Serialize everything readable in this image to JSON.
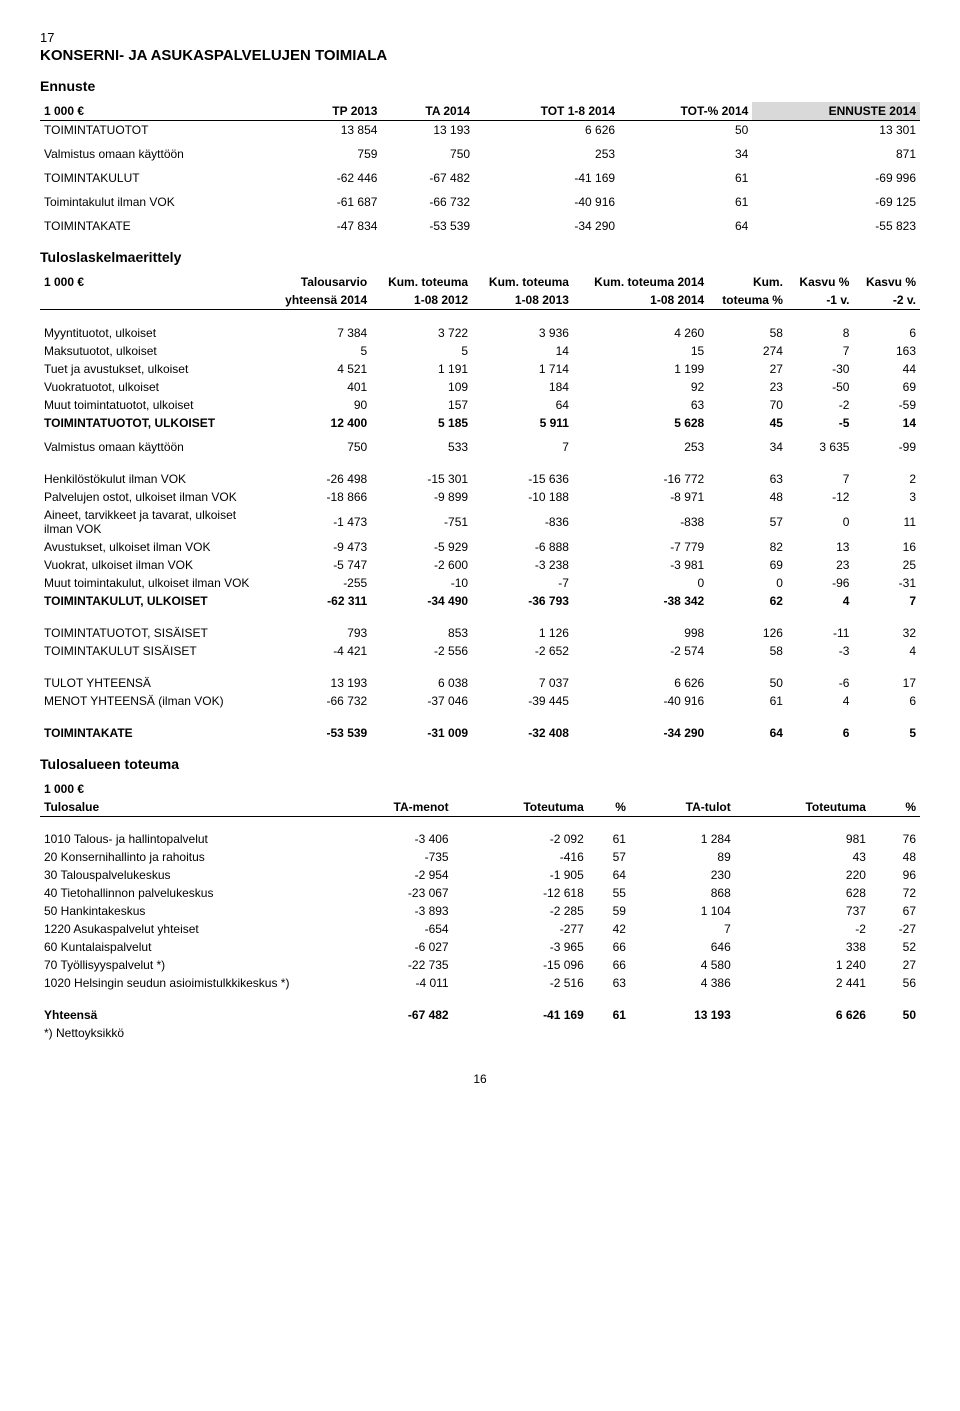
{
  "page_number_top": "17",
  "main_title": "KONSERNI- JA ASUKASPALVELUJEN TOIMIALA",
  "ennuste_title": "Ennuste",
  "t1": {
    "header": [
      "1 000 €",
      "TP 2013",
      "TA 2014",
      "TOT 1-8 2014",
      "TOT-% 2014",
      "ENNUSTE 2014"
    ],
    "rows": [
      [
        "TOIMINTATUOTOT",
        "13 854",
        "13 193",
        "6 626",
        "50",
        "13 301"
      ],
      [
        "Valmistus omaan käyttöön",
        "759",
        "750",
        "253",
        "34",
        "871"
      ],
      [
        "TOIMINTAKULUT",
        "-62 446",
        "-67 482",
        "-41 169",
        "61",
        "-69 996"
      ],
      [
        "Toimintakulut ilman VOK",
        "-61 687",
        "-66 732",
        "-40 916",
        "61",
        "-69 125"
      ],
      [
        "TOIMINTAKATE",
        "-47 834",
        "-53 539",
        "-34 290",
        "64",
        "-55 823"
      ]
    ]
  },
  "tulos_title": "Tuloslaskelmaerittely",
  "t2": {
    "header_top": [
      "1 000 €",
      "Talousarvio",
      "Kum. toteuma",
      "Kum. toteuma",
      "Kum. toteuma 2014",
      "Kum.",
      "Kasvu %",
      "Kasvu %"
    ],
    "header_bot": [
      "",
      "yhteensä 2014",
      "1-08 2012",
      "1-08 2013",
      "1-08 2014",
      "toteuma %",
      "-1 v.",
      "-2 v."
    ],
    "rows": [
      [
        "Myyntituotot, ulkoiset",
        "7 384",
        "3 722",
        "3 936",
        "4 260",
        "58",
        "8",
        "6"
      ],
      [
        "Maksutuotot, ulkoiset",
        "5",
        "5",
        "14",
        "15",
        "274",
        "7",
        "163"
      ],
      [
        "Tuet ja avustukset, ulkoiset",
        "4 521",
        "1 191",
        "1 714",
        "1 199",
        "27",
        "-30",
        "44"
      ],
      [
        "Vuokratuotot, ulkoiset",
        "401",
        "109",
        "184",
        "92",
        "23",
        "-50",
        "69"
      ],
      [
        "Muut toimintatuotot, ulkoiset",
        "90",
        "157",
        "64",
        "63",
        "70",
        "-2",
        "-59"
      ]
    ],
    "sum1": [
      "TOIMINTATUOTOT, ULKOISET",
      "12 400",
      "5 185",
      "5 911",
      "5 628",
      "45",
      "-5",
      "14"
    ],
    "valm": [
      "Valmistus omaan käyttöön",
      "750",
      "533",
      "7",
      "253",
      "34",
      "3 635",
      "-99"
    ],
    "rows2": [
      [
        "Henkilöstökulut ilman VOK",
        "-26 498",
        "-15 301",
        "-15 636",
        "-16 772",
        "63",
        "7",
        "2"
      ],
      [
        "Palvelujen ostot, ulkoiset ilman VOK",
        "-18 866",
        "-9 899",
        "-10 188",
        "-8 971",
        "48",
        "-12",
        "3"
      ],
      [
        "Aineet, tarvikkeet ja tavarat, ulkoiset ilman VOK",
        "-1 473",
        "-751",
        "-836",
        "-838",
        "57",
        "0",
        "11"
      ],
      [
        "Avustukset, ulkoiset ilman VOK",
        "-9 473",
        "-5 929",
        "-6 888",
        "-7 779",
        "82",
        "13",
        "16"
      ],
      [
        "Vuokrat, ulkoiset ilman VOK",
        "-5 747",
        "-2 600",
        "-3 238",
        "-3 981",
        "69",
        "23",
        "25"
      ],
      [
        "Muut toimintakulut, ulkoiset ilman VOK",
        "-255",
        "-10",
        "-7",
        "0",
        "0",
        "-96",
        "-31"
      ]
    ],
    "sum2": [
      "TOIMINTAKULUT, ULKOISET",
      "-62 311",
      "-34 490",
      "-36 793",
      "-38 342",
      "62",
      "4",
      "7"
    ],
    "rows3": [
      [
        "TOIMINTATUOTOT, SISÄISET",
        "793",
        "853",
        "1 126",
        "998",
        "126",
        "-11",
        "32"
      ],
      [
        "TOIMINTAKULUT SISÄISET",
        "-4 421",
        "-2 556",
        "-2 652",
        "-2 574",
        "58",
        "-3",
        "4"
      ]
    ],
    "rows4": [
      [
        "TULOT YHTEENSÄ",
        "13 193",
        "6 038",
        "7 037",
        "6 626",
        "50",
        "-6",
        "17"
      ],
      [
        "MENOT YHTEENSÄ (ilman VOK)",
        "-66 732",
        "-37 046",
        "-39 445",
        "-40 916",
        "61",
        "4",
        "6"
      ]
    ],
    "kate": [
      "TOIMINTAKATE",
      "-53 539",
      "-31 009",
      "-32 408",
      "-34 290",
      "64",
      "6",
      "5"
    ]
  },
  "tulosalue_title": "Tulosalueen toteuma",
  "t3": {
    "header_top": "1 000 €",
    "header": [
      "Tulosalue",
      "TA-menot",
      "Toteutuma",
      "%",
      "TA-tulot",
      "Toteutuma",
      "%"
    ],
    "rows": [
      [
        "1010 Talous- ja hallintopalvelut",
        "-3 406",
        "-2 092",
        "61",
        "1 284",
        "981",
        "76"
      ],
      [
        "20 Konsernihallinto ja rahoitus",
        "-735",
        "-416",
        "57",
        "89",
        "43",
        "48"
      ],
      [
        "30 Talouspalvelukeskus",
        "-2 954",
        "-1 905",
        "64",
        "230",
        "220",
        "96"
      ],
      [
        "40 Tietohallinnon palvelukeskus",
        "-23 067",
        "-12 618",
        "55",
        "868",
        "628",
        "72"
      ],
      [
        "50 Hankintakeskus",
        "-3 893",
        "-2 285",
        "59",
        "1 104",
        "737",
        "67"
      ],
      [
        "1220 Asukaspalvelut yhteiset",
        "-654",
        "-277",
        "42",
        "7",
        "-2",
        "-27"
      ],
      [
        "60 Kuntalaispalvelut",
        "-6 027",
        "-3 965",
        "66",
        "646",
        "338",
        "52"
      ],
      [
        "70 Työllisyyspalvelut *)",
        "-22 735",
        "-15 096",
        "66",
        "4 580",
        "1 240",
        "27"
      ],
      [
        "1020 Helsingin seudun asioimistulkkikeskus *)",
        "-4 011",
        "-2 516",
        "63",
        "4 386",
        "2 441",
        "56"
      ]
    ],
    "sum": [
      "Yhteensä",
      "-67 482",
      "-41 169",
      "61",
      "13 193",
      "6 626",
      "50"
    ],
    "note": "*) Nettoyksikkö"
  },
  "footer_page": "16"
}
